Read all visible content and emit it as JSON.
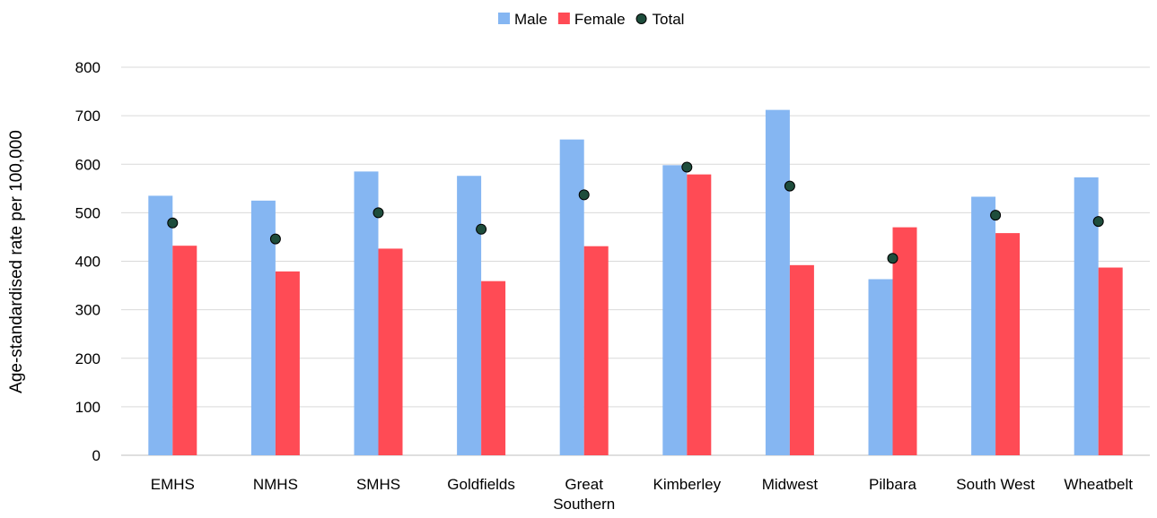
{
  "chart_data": {
    "type": "bar",
    "title": "",
    "xlabel": "",
    "ylabel": "Age-standardised rate per 100,000",
    "ylim": [
      0,
      800
    ],
    "yticks": [
      0,
      100,
      200,
      300,
      400,
      500,
      600,
      700,
      800
    ],
    "grid": true,
    "legend_position": "top",
    "categories": [
      [
        "EMHS"
      ],
      [
        "NMHS"
      ],
      [
        "SMHS"
      ],
      [
        "Goldfields"
      ],
      [
        "Great",
        "Southern"
      ],
      [
        "Kimberley"
      ],
      [
        "Midwest"
      ],
      [
        "Pilbara"
      ],
      [
        "South West"
      ],
      [
        "Wheatbelt"
      ]
    ],
    "series": [
      {
        "name": "Male",
        "kind": "bar",
        "color": "#85b6f2",
        "values": [
          535,
          525,
          585,
          576,
          651,
          598,
          712,
          363,
          533,
          573
        ]
      },
      {
        "name": "Female",
        "kind": "bar",
        "color": "#ff4b55",
        "values": [
          432,
          379,
          426,
          359,
          431,
          579,
          392,
          470,
          458,
          387
        ]
      },
      {
        "name": "Total",
        "kind": "marker",
        "color": "#1e4d3c",
        "values": [
          479,
          446,
          500,
          466,
          537,
          594,
          555,
          406,
          495,
          482
        ]
      }
    ]
  }
}
